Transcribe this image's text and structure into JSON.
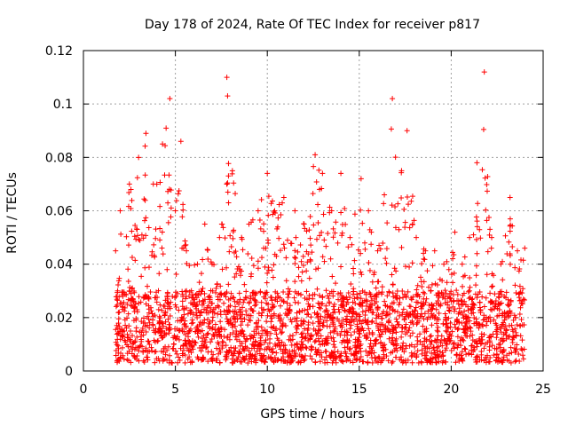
{
  "chart_data": {
    "type": "scatter",
    "title": "Day 178 of 2024, Rate Of TEC Index for receiver p817",
    "xlabel": "GPS time / hours",
    "ylabel": "ROTI / TECUs",
    "xlim": [
      0,
      25
    ],
    "ylim": [
      0,
      0.12
    ],
    "x_ticks": [
      0,
      5,
      10,
      15,
      20,
      25
    ],
    "x_tick_labels": [
      "0",
      "5",
      "10",
      "15",
      "20",
      "25"
    ],
    "y_ticks": [
      0,
      0.02,
      0.04,
      0.06,
      0.08,
      0.1,
      0.12
    ],
    "y_tick_labels": [
      "0",
      "0.02",
      "0.04",
      "0.06",
      "0.08",
      "0.1",
      "0.12"
    ],
    "grid": true,
    "marker": "+",
    "color": "#ff0000",
    "data_x_range": [
      1.75,
      24.0
    ],
    "baseline_band": [
      0.003,
      0.03
    ],
    "envelope": [
      [
        1.75,
        0.045
      ],
      [
        2.0,
        0.06
      ],
      [
        2.5,
        0.07
      ],
      [
        3.0,
        0.08
      ],
      [
        3.4,
        0.089
      ],
      [
        3.8,
        0.07
      ],
      [
        4.3,
        0.085
      ],
      [
        4.7,
        0.102
      ],
      [
        5.0,
        0.06
      ],
      [
        5.3,
        0.086
      ],
      [
        5.6,
        0.045
      ],
      [
        6.2,
        0.04
      ],
      [
        6.6,
        0.055
      ],
      [
        7.0,
        0.04
      ],
      [
        7.4,
        0.05
      ],
      [
        7.8,
        0.11
      ],
      [
        8.1,
        0.075
      ],
      [
        8.6,
        0.05
      ],
      [
        9.0,
        0.055
      ],
      [
        9.5,
        0.06
      ],
      [
        10.0,
        0.074
      ],
      [
        10.4,
        0.06
      ],
      [
        10.9,
        0.065
      ],
      [
        11.5,
        0.06
      ],
      [
        12.0,
        0.055
      ],
      [
        12.6,
        0.081
      ],
      [
        13.0,
        0.074
      ],
      [
        13.5,
        0.06
      ],
      [
        14.0,
        0.074
      ],
      [
        14.5,
        0.05
      ],
      [
        15.1,
        0.072
      ],
      [
        15.5,
        0.06
      ],
      [
        16.0,
        0.045
      ],
      [
        16.8,
        0.102
      ],
      [
        17.3,
        0.075
      ],
      [
        17.6,
        0.09
      ],
      [
        18.1,
        0.05
      ],
      [
        18.6,
        0.045
      ],
      [
        19.1,
        0.045
      ],
      [
        19.6,
        0.04
      ],
      [
        20.2,
        0.052
      ],
      [
        20.6,
        0.04
      ],
      [
        21.0,
        0.05
      ],
      [
        21.4,
        0.078
      ],
      [
        21.8,
        0.112
      ],
      [
        22.2,
        0.05
      ],
      [
        22.7,
        0.04
      ],
      [
        23.2,
        0.065
      ],
      [
        23.6,
        0.045
      ],
      [
        24.0,
        0.046
      ]
    ]
  }
}
